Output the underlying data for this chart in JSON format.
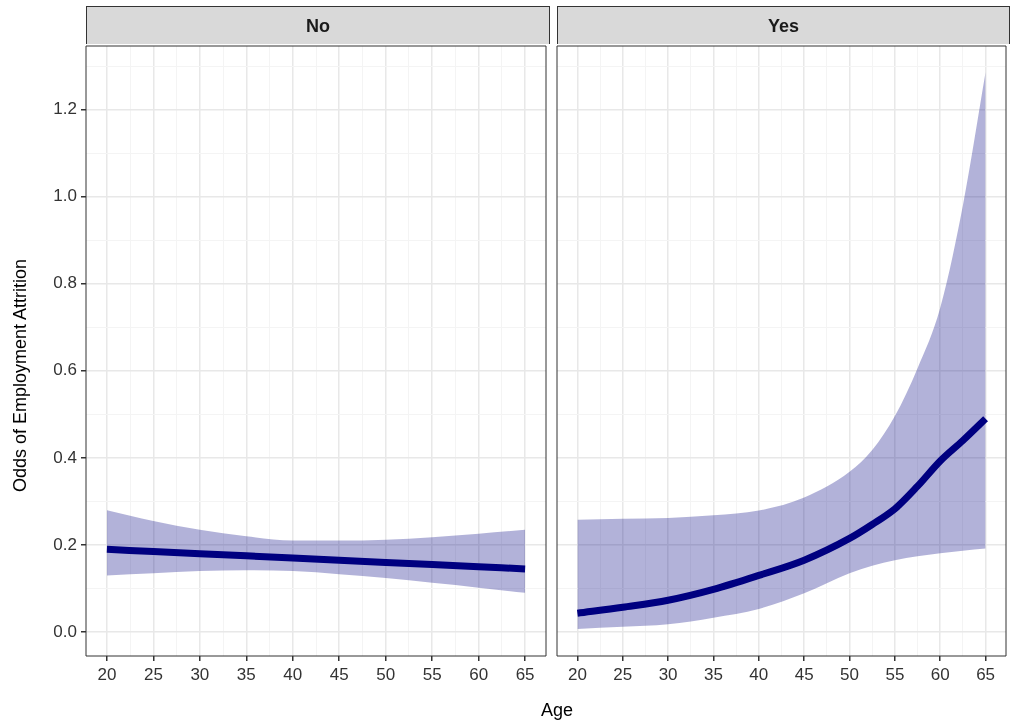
{
  "chart_data": [
    {
      "type": "line",
      "title": "No",
      "ylabel": "Odds of Employment Attrition",
      "xlabel": "Age",
      "grid": true,
      "legend": false,
      "xlim": [
        17.75,
        67.25
      ],
      "xticks": [
        20,
        {
          "value": 22.5,
          "label": null
        },
        25,
        {
          "value": 27.5,
          "label": null
        },
        30,
        {
          "value": 32.5,
          "label": null
        },
        35,
        {
          "value": 37.5,
          "label": null
        },
        40,
        {
          "value": 42.5,
          "label": null
        },
        45,
        {
          "value": 47.5,
          "label": null
        },
        50,
        {
          "value": 52.5,
          "label": null
        },
        55,
        {
          "value": 57.5,
          "label": null
        },
        60,
        {
          "value": 62.5,
          "label": null
        },
        65
      ],
      "ylim": [
        -0.055,
        1.346
      ],
      "yticks": [
        {
          "value": 0,
          "label": "0.0"
        },
        {
          "value": 0.1,
          "label": null
        },
        {
          "value": 0.2,
          "label": "0.2"
        },
        {
          "value": 0.3,
          "label": null
        },
        {
          "value": 0.4,
          "label": "0.4"
        },
        {
          "value": 0.5,
          "label": null
        },
        {
          "value": 0.6,
          "label": "0.6"
        },
        {
          "value": 0.7,
          "label": null
        },
        {
          "value": 0.8,
          "label": "0.8"
        },
        {
          "value": 0.9,
          "label": null
        },
        {
          "value": 1,
          "label": "1.0"
        },
        {
          "value": 1.1,
          "label": null
        },
        {
          "value": 1.2,
          "label": "1.2"
        },
        {
          "value": 1.3,
          "label": null
        }
      ],
      "x": [
        20,
        25,
        30,
        35,
        40,
        45,
        50,
        55,
        60,
        65
      ],
      "series": [
        {
          "color": "#000080",
          "values": [
            0.19,
            0.185,
            0.18,
            0.175,
            0.17,
            0.165,
            0.16,
            0.155,
            0.15,
            0.145
          ],
          "lower": [
            0.13,
            0.135,
            0.14,
            0.142,
            0.14,
            0.133,
            0.124,
            0.113,
            0.102,
            0.09
          ],
          "upper": [
            0.28,
            0.255,
            0.235,
            0.22,
            0.21,
            0.21,
            0.212,
            0.218,
            0.226,
            0.235
          ]
        }
      ]
    },
    {
      "type": "line",
      "title": "Yes",
      "grid": true,
      "legend": false,
      "tick_labels": "x",
      "xlim": [
        17.75,
        67.25
      ],
      "xticks": [
        20,
        {
          "value": 22.5,
          "label": null
        },
        25,
        {
          "value": 27.5,
          "label": null
        },
        30,
        {
          "value": 32.5,
          "label": null
        },
        35,
        {
          "value": 37.5,
          "label": null
        },
        40,
        {
          "value": 42.5,
          "label": null
        },
        45,
        {
          "value": 47.5,
          "label": null
        },
        50,
        {
          "value": 52.5,
          "label": null
        },
        55,
        {
          "value": 57.5,
          "label": null
        },
        60,
        {
          "value": 62.5,
          "label": null
        },
        65
      ],
      "ylim": [
        -0.055,
        1.346
      ],
      "yticks": [
        0,
        {
          "value": 0.1,
          "label": null
        },
        0.2,
        {
          "value": 0.3,
          "label": null
        },
        0.4,
        {
          "value": 0.5,
          "label": null
        },
        0.6,
        {
          "value": 0.7,
          "label": null
        },
        0.8,
        {
          "value": 0.9,
          "label": null
        },
        1,
        {
          "value": 1.1,
          "label": null
        },
        1.2,
        {
          "value": 1.3,
          "label": null
        }
      ],
      "x": [
        20,
        25,
        30,
        35,
        40,
        45,
        50,
        52.5,
        55,
        57.5,
        60,
        62.5,
        65
      ],
      "series": [
        {
          "color": "#000080",
          "values": [
            0.043,
            0.057,
            0.073,
            0.098,
            0.13,
            0.165,
            0.215,
            0.247,
            0.283,
            0.335,
            0.393,
            0.44,
            0.49
          ],
          "lower": [
            0.007,
            0.012,
            0.018,
            0.033,
            0.053,
            0.089,
            0.135,
            0.152,
            0.165,
            0.174,
            0.181,
            0.187,
            0.192
          ],
          "upper": [
            0.258,
            0.26,
            0.262,
            0.268,
            0.279,
            0.309,
            0.368,
            0.418,
            0.496,
            0.606,
            0.745,
            0.98,
            1.286
          ]
        }
      ]
    }
  ]
}
